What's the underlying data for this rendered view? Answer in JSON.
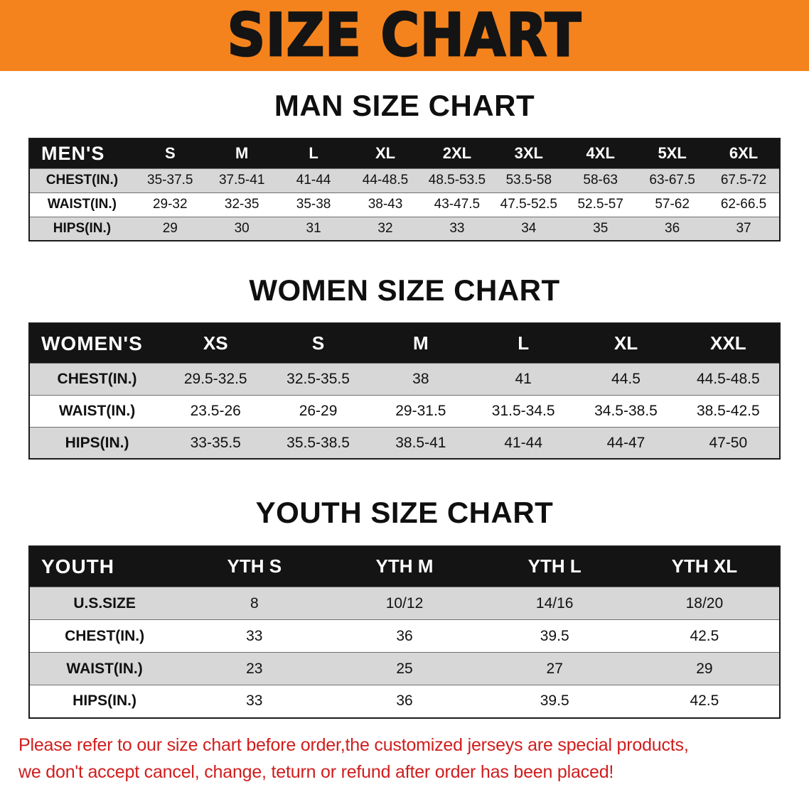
{
  "banner": {
    "title": "SIZE CHART"
  },
  "sections": [
    {
      "id": "men",
      "heading": "MAN SIZE CHART",
      "table": {
        "header": [
          "MEN'S",
          "S",
          "M",
          "L",
          "XL",
          "2XL",
          "3XL",
          "4XL",
          "5XL",
          "6XL"
        ],
        "rows": [
          {
            "label": "CHEST(IN.)",
            "values": [
              "35-37.5",
              "37.5-41",
              "41-44",
              "44-48.5",
              "48.5-53.5",
              "53.5-58",
              "58-63",
              "63-67.5",
              "67.5-72"
            ]
          },
          {
            "label": "WAIST(IN.)",
            "values": [
              "29-32",
              "32-35",
              "35-38",
              "38-43",
              "43-47.5",
              "47.5-52.5",
              "52.5-57",
              "57-62",
              "62-66.5"
            ]
          },
          {
            "label": "HIPS(IN.)",
            "values": [
              "29",
              "30",
              "31",
              "32",
              "33",
              "34",
              "35",
              "36",
              "37"
            ]
          }
        ]
      }
    },
    {
      "id": "women",
      "heading": "WOMEN SIZE CHART",
      "table": {
        "header": [
          "WOMEN'S",
          "XS",
          "S",
          "M",
          "L",
          "XL",
          "XXL"
        ],
        "rows": [
          {
            "label": "CHEST(IN.)",
            "values": [
              "29.5-32.5",
              "32.5-35.5",
              "38",
              "41",
              "44.5",
              "44.5-48.5"
            ]
          },
          {
            "label": "WAIST(IN.)",
            "values": [
              "23.5-26",
              "26-29",
              "29-31.5",
              "31.5-34.5",
              "34.5-38.5",
              "38.5-42.5"
            ]
          },
          {
            "label": "HIPS(IN.)",
            "values": [
              "33-35.5",
              "35.5-38.5",
              "38.5-41",
              "41-44",
              "44-47",
              "47-50"
            ]
          }
        ]
      }
    },
    {
      "id": "youth",
      "heading": "YOUTH SIZE CHART",
      "table": {
        "header": [
          "YOUTH",
          "YTH S",
          "YTH M",
          "YTH L",
          "YTH XL"
        ],
        "rows": [
          {
            "label": "U.S.SIZE",
            "values": [
              "8",
              "10/12",
              "14/16",
              "18/20"
            ]
          },
          {
            "label": "CHEST(IN.)",
            "values": [
              "33",
              "36",
              "39.5",
              "42.5"
            ]
          },
          {
            "label": "WAIST(IN.)",
            "values": [
              "23",
              "25",
              "27",
              "29"
            ]
          },
          {
            "label": "HIPS(IN.)",
            "values": [
              "33",
              "36",
              "39.5",
              "42.5"
            ]
          }
        ]
      }
    }
  ],
  "disclaimer": {
    "line1": "Please refer to our size chart before order,the customized jerseys are special products,",
    "line2": "we don't accept cancel, change, teturn or refund after order has been placed!"
  },
  "colors": {
    "banner_bg": "#f5831d",
    "table_header_bg": "#141414",
    "table_header_text": "#ffffff",
    "row_stripe": "#d7d7d7",
    "disclaimer_text": "#d01d1d"
  }
}
